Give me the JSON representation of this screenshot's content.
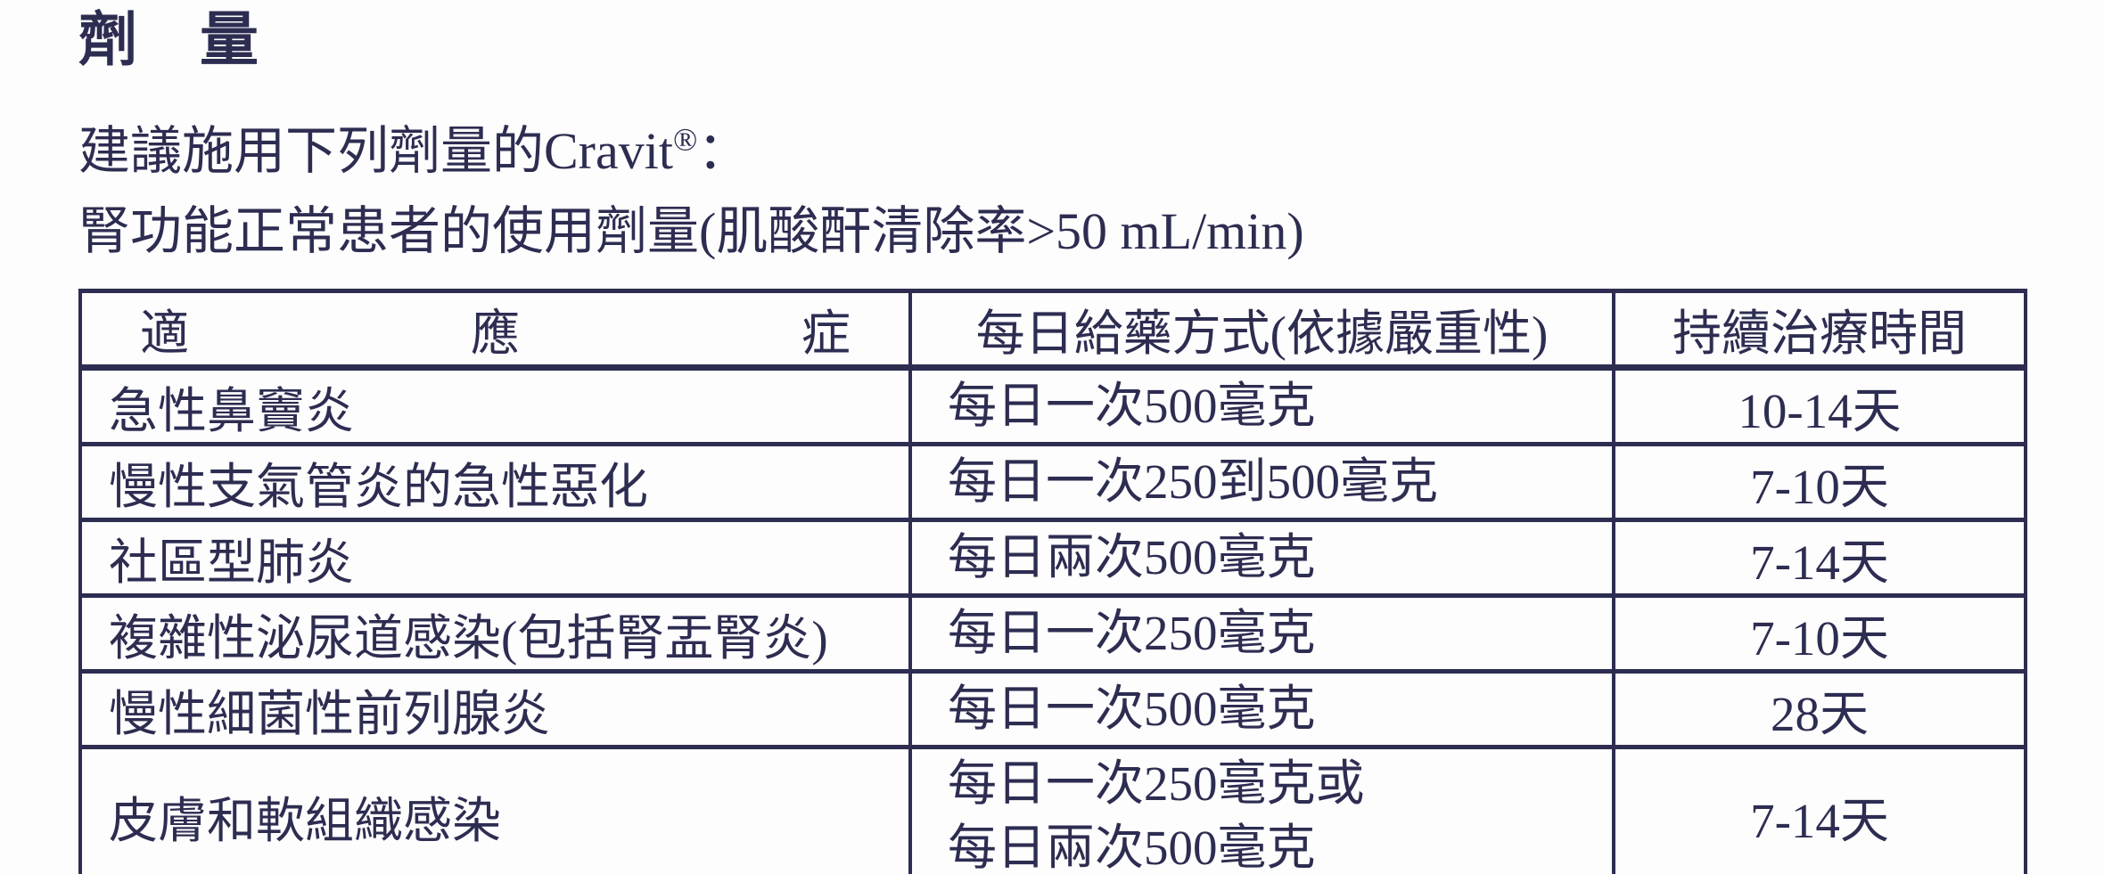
{
  "colors": {
    "ink": "#2d2d52",
    "paper": "#fdfdfd"
  },
  "heading": {
    "title": "劑　量"
  },
  "intro": {
    "text": "建議施用下列劑量的Cravit",
    "registered_mark": "®",
    "colon": "："
  },
  "subtitle": "腎功能正常患者的使用劑量(肌酸酐清除率>50 mL/min)",
  "dosage_table": {
    "header": {
      "indication_chars": [
        "適",
        "應",
        "症"
      ],
      "dosage": "每日給藥方式(依據嚴重性)",
      "duration": "持續治療時間"
    },
    "rows": [
      {
        "indication": "急性鼻竇炎",
        "dosage": "每日一次500毫克",
        "duration": "10-14天"
      },
      {
        "indication": "慢性支氣管炎的急性惡化",
        "dosage": "每日一次250到500毫克",
        "duration": "7-10天"
      },
      {
        "indication": "社區型肺炎",
        "dosage": "每日兩次500毫克",
        "duration": "7-14天"
      },
      {
        "indication": "複雜性泌尿道感染(包括腎盂腎炎)",
        "dosage": "每日一次250毫克",
        "duration": "7-10天"
      },
      {
        "indication": "慢性細菌性前列腺炎",
        "dosage": "每日一次500毫克",
        "duration": "28天"
      },
      {
        "indication": "皮膚和軟組織感染",
        "dosage": "每日一次250毫克或\n每日兩次500毫克",
        "duration": "7-14天"
      }
    ]
  }
}
